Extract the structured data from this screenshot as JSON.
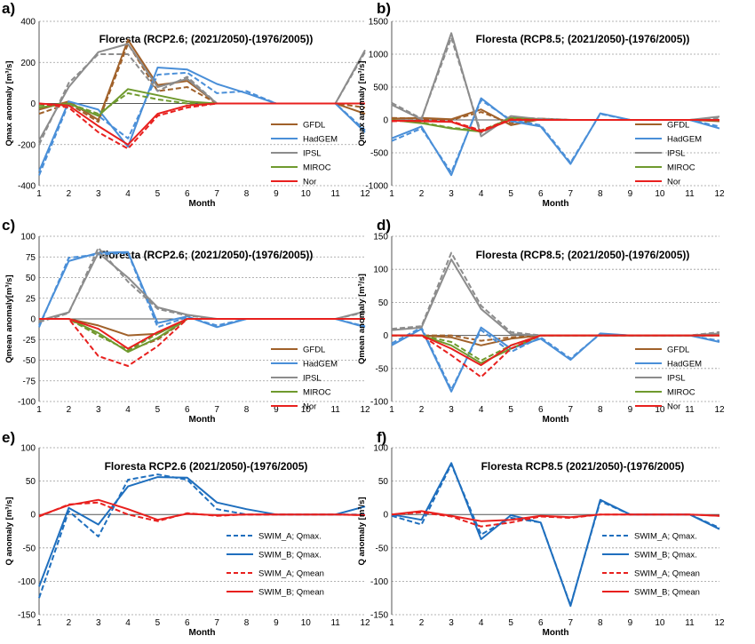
{
  "colors": {
    "GFDL": "#a0612a",
    "HadGEM": "#4a8fd8",
    "IPSL": "#8c8c8c",
    "MIROC": "#6f9a2e",
    "Nor": "#e8201e",
    "SWIM_blue": "#1f6fbe",
    "SWIM_red": "#e8201e",
    "grid": "#9a9a9a",
    "axis": "#555555"
  },
  "chart_data": [
    {
      "panel": "a)",
      "type": "line",
      "title": "Floresta (RCP2.6; (2021/2050)-(1976/2005))",
      "xlabel": "Month",
      "ylabel": "Qmax anomaly [m³/s]",
      "x": [
        1,
        2,
        3,
        4,
        5,
        6,
        7,
        8,
        9,
        10,
        11,
        12
      ],
      "ylim": [
        -400,
        400
      ],
      "yticks": [
        -400,
        -200,
        0,
        200,
        400
      ],
      "legend": "center-right",
      "series": [
        {
          "name": "GFDL",
          "style": "solid",
          "color_key": "GFDL",
          "values": [
            -30,
            10,
            -80,
            310,
            90,
            110,
            0,
            0,
            0,
            0,
            0,
            -50
          ]
        },
        {
          "name": "",
          "style": "dashed",
          "color_key": "GFDL",
          "values": [
            -50,
            0,
            -90,
            290,
            60,
            80,
            0,
            0,
            0,
            0,
            0,
            -20
          ]
        },
        {
          "name": "HadGEM",
          "style": "solid",
          "color_key": "HadGEM",
          "values": [
            -330,
            10,
            -30,
            -210,
            175,
            165,
            95,
            50,
            0,
            0,
            0,
            -140
          ]
        },
        {
          "name": "",
          "style": "dashed",
          "color_key": "HadGEM",
          "values": [
            -350,
            0,
            -60,
            -170,
            140,
            150,
            50,
            60,
            0,
            0,
            0,
            -130
          ]
        },
        {
          "name": "IPSL",
          "style": "solid",
          "color_key": "IPSL",
          "values": [
            -180,
            80,
            250,
            290,
            80,
            120,
            0,
            0,
            0,
            0,
            0,
            260
          ]
        },
        {
          "name": "",
          "style": "dashed",
          "color_key": "IPSL",
          "values": [
            -200,
            100,
            240,
            240,
            60,
            130,
            0,
            0,
            0,
            0,
            0,
            250
          ]
        },
        {
          "name": "MIROC",
          "style": "solid",
          "color_key": "MIROC",
          "values": [
            -20,
            0,
            -60,
            70,
            40,
            10,
            0,
            0,
            0,
            0,
            0,
            0
          ]
        },
        {
          "name": "",
          "style": "dashed",
          "color_key": "MIROC",
          "values": [
            -10,
            0,
            -50,
            50,
            20,
            0,
            0,
            0,
            0,
            0,
            0,
            0
          ]
        },
        {
          "name": "Nor",
          "style": "solid",
          "color_key": "Nor",
          "values": [
            0,
            -10,
            -110,
            -200,
            -50,
            -10,
            0,
            0,
            0,
            0,
            0,
            0
          ]
        },
        {
          "name": "",
          "style": "dashed",
          "color_key": "Nor",
          "values": [
            0,
            -20,
            -140,
            -220,
            -60,
            -20,
            0,
            0,
            0,
            0,
            0,
            0
          ]
        }
      ]
    },
    {
      "panel": "b)",
      "type": "line",
      "title": "Floresta (RCP8.5; (2021/2050)-(1976/2005))",
      "xlabel": "Month",
      "ylabel": "Qmax anomaly [m³/s]",
      "x": [
        1,
        2,
        3,
        4,
        5,
        6,
        7,
        8,
        9,
        10,
        11,
        12
      ],
      "ylim": [
        -1000,
        1500
      ],
      "yticks": [
        -1000,
        -500,
        0,
        500,
        1000,
        1500
      ],
      "legend": "center-right",
      "series": [
        {
          "name": "GFDL",
          "style": "solid",
          "color_key": "GFDL",
          "values": [
            20,
            30,
            10,
            160,
            -80,
            10,
            0,
            0,
            0,
            0,
            0,
            -20
          ]
        },
        {
          "name": "",
          "style": "dashed",
          "color_key": "GFDL",
          "values": [
            30,
            20,
            0,
            120,
            -50,
            20,
            0,
            0,
            0,
            0,
            0,
            0
          ]
        },
        {
          "name": "HadGEM",
          "style": "solid",
          "color_key": "HadGEM",
          "values": [
            -280,
            -100,
            -840,
            330,
            -20,
            -100,
            -670,
            100,
            0,
            0,
            0,
            -130
          ]
        },
        {
          "name": "",
          "style": "dashed",
          "color_key": "HadGEM",
          "values": [
            -320,
            -130,
            -800,
            300,
            0,
            -80,
            -650,
            90,
            0,
            0,
            0,
            -100
          ]
        },
        {
          "name": "IPSL",
          "style": "solid",
          "color_key": "IPSL",
          "values": [
            230,
            10,
            1320,
            -250,
            60,
            10,
            0,
            0,
            0,
            0,
            0,
            50
          ]
        },
        {
          "name": "",
          "style": "dashed",
          "color_key": "IPSL",
          "values": [
            260,
            20,
            1250,
            -200,
            40,
            20,
            0,
            0,
            0,
            0,
            0,
            30
          ]
        },
        {
          "name": "MIROC",
          "style": "solid",
          "color_key": "MIROC",
          "values": [
            0,
            -50,
            -130,
            -180,
            30,
            0,
            0,
            0,
            0,
            0,
            0,
            0
          ]
        },
        {
          "name": "",
          "style": "dashed",
          "color_key": "MIROC",
          "values": [
            0,
            -40,
            -120,
            -160,
            20,
            0,
            0,
            0,
            0,
            0,
            0,
            0
          ]
        },
        {
          "name": "Nor",
          "style": "solid",
          "color_key": "Nor",
          "values": [
            -10,
            -20,
            -30,
            -180,
            0,
            0,
            0,
            0,
            0,
            0,
            0,
            0
          ]
        },
        {
          "name": "",
          "style": "dashed",
          "color_key": "Nor",
          "values": [
            -20,
            -10,
            -20,
            -160,
            10,
            0,
            0,
            0,
            0,
            0,
            0,
            0
          ]
        }
      ]
    },
    {
      "panel": "c)",
      "type": "line",
      "title": "Floresta (RCP2.6; (2021/2050)-(1976/2005))",
      "xlabel": "Month",
      "ylabel": "Qmean anomaly[m³/s]",
      "x": [
        1,
        2,
        3,
        4,
        5,
        6,
        7,
        8,
        9,
        10,
        11,
        12
      ],
      "ylim": [
        -100,
        100
      ],
      "yticks": [
        -100,
        -75,
        -50,
        -25,
        0,
        25,
        50,
        75,
        100
      ],
      "legend": "center-right",
      "series": [
        {
          "name": "GFDL",
          "style": "solid",
          "color_key": "GFDL",
          "values": [
            0,
            0,
            -8,
            -20,
            -18,
            0,
            0,
            0,
            0,
            0,
            0,
            0
          ]
        },
        {
          "name": "",
          "style": "dashed",
          "color_key": "GFDL",
          "values": [
            0,
            0,
            -20,
            -38,
            -25,
            0,
            0,
            0,
            0,
            0,
            0,
            0
          ]
        },
        {
          "name": "HadGEM",
          "style": "solid",
          "color_key": "HadGEM",
          "values": [
            -8,
            70,
            80,
            81,
            -5,
            3,
            -10,
            0,
            0,
            0,
            0,
            -10
          ]
        },
        {
          "name": "",
          "style": "dashed",
          "color_key": "HadGEM",
          "values": [
            -10,
            74,
            78,
            80,
            -10,
            2,
            -8,
            0,
            0,
            0,
            0,
            -9
          ]
        },
        {
          "name": "IPSL",
          "style": "solid",
          "color_key": "IPSL",
          "values": [
            -2,
            8,
            80,
            50,
            14,
            5,
            0,
            0,
            0,
            0,
            0,
            9
          ]
        },
        {
          "name": "",
          "style": "dashed",
          "color_key": "IPSL",
          "values": [
            -4,
            7,
            86,
            45,
            12,
            4,
            0,
            0,
            0,
            0,
            0,
            8
          ]
        },
        {
          "name": "MIROC",
          "style": "solid",
          "color_key": "MIROC",
          "values": [
            0,
            0,
            -17,
            -40,
            -23,
            0,
            0,
            0,
            0,
            0,
            0,
            0
          ]
        },
        {
          "name": "",
          "style": "dashed",
          "color_key": "MIROC",
          "values": [
            0,
            0,
            -20,
            -38,
            -18,
            0,
            0,
            0,
            0,
            0,
            0,
            0
          ]
        },
        {
          "name": "Nor",
          "style": "solid",
          "color_key": "Nor",
          "values": [
            0,
            0,
            -12,
            -36,
            -16,
            0,
            0,
            0,
            0,
            0,
            0,
            0
          ]
        },
        {
          "name": "",
          "style": "dashed",
          "color_key": "Nor",
          "values": [
            0,
            0,
            -45,
            -57,
            -33,
            0,
            0,
            0,
            0,
            0,
            0,
            0
          ]
        }
      ]
    },
    {
      "panel": "d)",
      "type": "line",
      "title": "Floresta (RCP8.5; (2021/2050)-(1976/2005))",
      "xlabel": "Month",
      "ylabel": "Qmean anomaly [m³/s]",
      "x": [
        1,
        2,
        3,
        4,
        5,
        6,
        7,
        8,
        9,
        10,
        11,
        12
      ],
      "ylim": [
        -100,
        150
      ],
      "yticks": [
        -100,
        -50,
        0,
        50,
        100,
        150
      ],
      "legend": "center-right",
      "series": [
        {
          "name": "GFDL",
          "style": "solid",
          "color_key": "GFDL",
          "values": [
            0,
            0,
            -3,
            -15,
            -5,
            0,
            0,
            0,
            0,
            0,
            0,
            0
          ]
        },
        {
          "name": "",
          "style": "dashed",
          "color_key": "GFDL",
          "values": [
            0,
            0,
            0,
            -8,
            -3,
            0,
            0,
            0,
            0,
            0,
            0,
            0
          ]
        },
        {
          "name": "HadGEM",
          "style": "solid",
          "color_key": "HadGEM",
          "values": [
            -15,
            10,
            -85,
            12,
            -20,
            -5,
            -37,
            3,
            0,
            0,
            0,
            -10
          ]
        },
        {
          "name": "",
          "style": "dashed",
          "color_key": "HadGEM",
          "values": [
            -12,
            12,
            -82,
            8,
            -25,
            -3,
            -35,
            2,
            0,
            0,
            0,
            -8
          ]
        },
        {
          "name": "IPSL",
          "style": "solid",
          "color_key": "IPSL",
          "values": [
            8,
            12,
            115,
            40,
            2,
            0,
            0,
            0,
            0,
            0,
            0,
            3
          ]
        },
        {
          "name": "",
          "style": "dashed",
          "color_key": "IPSL",
          "values": [
            10,
            14,
            125,
            45,
            5,
            0,
            0,
            0,
            0,
            0,
            0,
            5
          ]
        },
        {
          "name": "MIROC",
          "style": "solid",
          "color_key": "MIROC",
          "values": [
            0,
            0,
            -15,
            -42,
            -20,
            0,
            0,
            0,
            0,
            0,
            0,
            0
          ]
        },
        {
          "name": "",
          "style": "dashed",
          "color_key": "MIROC",
          "values": [
            0,
            0,
            -10,
            -38,
            -15,
            0,
            0,
            0,
            0,
            0,
            0,
            0
          ]
        },
        {
          "name": "Nor",
          "style": "solid",
          "color_key": "Nor",
          "values": [
            0,
            0,
            -20,
            -45,
            -15,
            0,
            0,
            0,
            0,
            0,
            0,
            0
          ]
        },
        {
          "name": "",
          "style": "dashed",
          "color_key": "Nor",
          "values": [
            0,
            0,
            -30,
            -63,
            -20,
            0,
            0,
            0,
            0,
            0,
            0,
            0
          ]
        }
      ]
    },
    {
      "panel": "e)",
      "type": "line",
      "title": "Floresta RCP2.6 (2021/2050)-(1976/2005)",
      "xlabel": "Month",
      "ylabel": "Q anomaly [m³/s]",
      "x": [
        1,
        2,
        3,
        4,
        5,
        6,
        7,
        8,
        9,
        10,
        11,
        12
      ],
      "ylim": [
        -150,
        100
      ],
      "yticks": [
        -150,
        -100,
        -50,
        0,
        50,
        100
      ],
      "legend": "bottom-right",
      "series": [
        {
          "name": "SWIM_A; Qmax.",
          "style": "dashed",
          "color_key": "SWIM_blue",
          "values": [
            -125,
            5,
            -33,
            52,
            60,
            52,
            8,
            0,
            0,
            0,
            0,
            0
          ]
        },
        {
          "name": "SWIM_B; Qmax.",
          "style": "solid",
          "color_key": "SWIM_blue",
          "values": [
            -108,
            10,
            -15,
            42,
            56,
            55,
            18,
            8,
            0,
            0,
            0,
            12
          ]
        },
        {
          "name": "SWIM_A; Qmean",
          "style": "dashed",
          "color_key": "SWIM_red",
          "values": [
            -3,
            15,
            18,
            0,
            -10,
            2,
            -2,
            0,
            0,
            0,
            0,
            -1
          ]
        },
        {
          "name": "SWIM_B; Qmean",
          "style": "solid",
          "color_key": "SWIM_red",
          "values": [
            -2,
            14,
            22,
            8,
            -8,
            1,
            -1,
            0,
            0,
            0,
            0,
            -1
          ]
        }
      ]
    },
    {
      "panel": "f)",
      "type": "line",
      "title": "Floresta RCP8.5 (2021/2050)-(1976/2005)",
      "xlabel": "Month",
      "ylabel": "Q anomaly [m³/s]",
      "x": [
        1,
        2,
        3,
        4,
        5,
        6,
        7,
        8,
        9,
        10,
        11,
        12
      ],
      "ylim": [
        -150,
        100
      ],
      "yticks": [
        -150,
        -100,
        -50,
        0,
        50,
        100
      ],
      "legend": "bottom-right",
      "series": [
        {
          "name": "SWIM_A; Qmax.",
          "style": "dashed",
          "color_key": "SWIM_blue",
          "values": [
            -2,
            -15,
            75,
            -30,
            -5,
            -12,
            -136,
            20,
            0,
            0,
            0,
            -20
          ]
        },
        {
          "name": "SWIM_B; Qmax.",
          "style": "solid",
          "color_key": "SWIM_blue",
          "values": [
            0,
            -8,
            77,
            -37,
            -1,
            -12,
            -137,
            22,
            0,
            0,
            0,
            -22
          ]
        },
        {
          "name": "SWIM_A; Qmean",
          "style": "dashed",
          "color_key": "SWIM_red",
          "values": [
            0,
            3,
            -3,
            -18,
            -12,
            -3,
            -5,
            0,
            0,
            0,
            0,
            -2
          ]
        },
        {
          "name": "SWIM_B; Qmean",
          "style": "solid",
          "color_key": "SWIM_red",
          "values": [
            0,
            5,
            -2,
            -10,
            -8,
            -2,
            -4,
            0,
            0,
            0,
            0,
            -2
          ]
        }
      ]
    }
  ]
}
